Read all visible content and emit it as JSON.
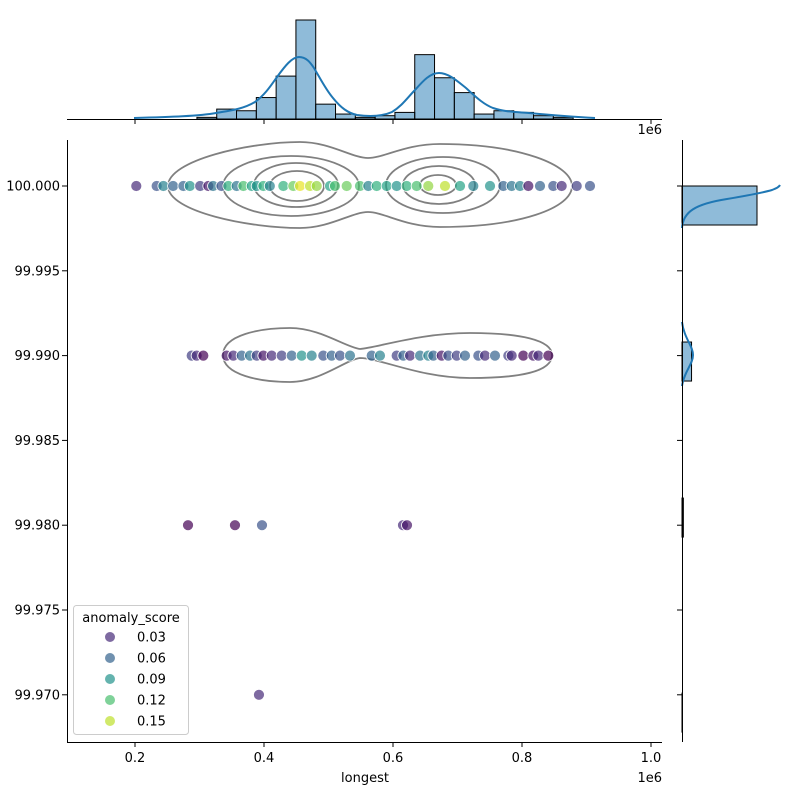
{
  "chart_data": {
    "type": "scatter",
    "subtype": "jointplot",
    "xlabel": "longest",
    "ylabel": "",
    "x_offset_label": "1e6",
    "top_offset_label": "1e6",
    "xlim": [
      94600,
      1017000
    ],
    "ylim": [
      99.9672,
      100.0027
    ],
    "x_ticks": [
      200000,
      400000,
      600000,
      800000,
      1000000
    ],
    "x_tick_labels": [
      "0.2",
      "0.4",
      "0.6",
      "0.8",
      "1.0"
    ],
    "y_ticks": [
      100.0,
      99.995,
      99.99,
      99.985,
      99.98,
      99.975,
      99.97
    ],
    "y_tick_labels": [
      "100.000",
      "99.995",
      "99.990",
      "99.985",
      "99.980",
      "99.975",
      "99.970"
    ],
    "grid": false,
    "hue": "anomaly_score",
    "hue_range": [
      0.0115,
      0.165
    ],
    "colormap": "viridis",
    "marker_alpha": 0.7,
    "legend": {
      "title": "anomaly_score",
      "placement": "lower-left",
      "entries": [
        "0.03",
        "0.06",
        "0.09",
        "0.12",
        "0.15"
      ],
      "values": [
        0.03,
        0.06,
        0.09,
        0.12,
        0.15
      ]
    },
    "points": [
      [
        202000,
        100.0,
        0.03
      ],
      [
        233600,
        100.0,
        0.05
      ],
      [
        244000,
        100.0,
        0.08
      ],
      [
        259000,
        100.0,
        0.06
      ],
      [
        275000,
        100.0,
        0.06
      ],
      [
        285000,
        100.0,
        0.09
      ],
      [
        301000,
        100.0,
        0.04
      ],
      [
        313700,
        100.0,
        0.02
      ],
      [
        321000,
        100.0,
        0.07
      ],
      [
        334000,
        100.0,
        0.05
      ],
      [
        344700,
        100.0,
        0.11
      ],
      [
        357600,
        100.0,
        0.07
      ],
      [
        368000,
        100.0,
        0.12
      ],
      [
        381000,
        100.0,
        0.1
      ],
      [
        388700,
        100.0,
        0.09
      ],
      [
        399000,
        100.0,
        0.11
      ],
      [
        409000,
        100.0,
        0.08
      ],
      [
        430000,
        100.0,
        0.11
      ],
      [
        445400,
        100.0,
        0.13
      ],
      [
        455800,
        100.0,
        0.16
      ],
      [
        471300,
        100.0,
        0.15
      ],
      [
        481700,
        100.0,
        0.14
      ],
      [
        502300,
        100.0,
        0.1
      ],
      [
        510000,
        100.0,
        0.12
      ],
      [
        528200,
        100.0,
        0.13
      ],
      [
        548800,
        100.0,
        0.12
      ],
      [
        561700,
        100.0,
        0.08
      ],
      [
        574700,
        100.0,
        0.11
      ],
      [
        590200,
        100.0,
        0.1
      ],
      [
        605700,
        100.0,
        0.09
      ],
      [
        621200,
        100.0,
        0.11
      ],
      [
        636700,
        100.0,
        0.12
      ],
      [
        654700,
        100.0,
        0.14
      ],
      [
        680600,
        100.0,
        0.15
      ],
      [
        703900,
        100.0,
        0.1
      ],
      [
        724500,
        100.0,
        0.08
      ],
      [
        750400,
        100.0,
        0.09
      ],
      [
        771000,
        100.0,
        0.06
      ],
      [
        784000,
        100.0,
        0.07
      ],
      [
        796900,
        100.0,
        0.08
      ],
      [
        809800,
        100.0,
        0.02
      ],
      [
        827900,
        100.0,
        0.06
      ],
      [
        848500,
        100.0,
        0.05
      ],
      [
        861500,
        100.0,
        0.03
      ],
      [
        884800,
        100.0,
        0.04
      ],
      [
        905400,
        100.0,
        0.05
      ],
      [
        287900,
        99.99,
        0.04
      ],
      [
        295600,
        99.99,
        0.03
      ],
      [
        305900,
        99.99,
        0.01
      ],
      [
        342100,
        99.99,
        0.02
      ],
      [
        352400,
        99.99,
        0.03
      ],
      [
        365400,
        99.99,
        0.06
      ],
      [
        378300,
        99.99,
        0.07
      ],
      [
        388700,
        99.99,
        0.04
      ],
      [
        399000,
        99.99,
        0.02
      ],
      [
        411900,
        99.99,
        0.03
      ],
      [
        427400,
        99.99,
        0.04
      ],
      [
        442900,
        99.99,
        0.06
      ],
      [
        458400,
        99.99,
        0.09
      ],
      [
        473900,
        99.99,
        0.08
      ],
      [
        491900,
        99.99,
        0.05
      ],
      [
        504900,
        99.99,
        0.06
      ],
      [
        517800,
        99.99,
        0.05
      ],
      [
        533300,
        99.99,
        0.07
      ],
      [
        567000,
        99.99,
        0.06
      ],
      [
        579800,
        99.99,
        0.08
      ],
      [
        605700,
        99.99,
        0.04
      ],
      [
        616000,
        99.99,
        0.06
      ],
      [
        626400,
        99.99,
        0.03
      ],
      [
        641900,
        99.99,
        0.07
      ],
      [
        654700,
        99.99,
        0.08
      ],
      [
        662500,
        99.99,
        0.06
      ],
      [
        675500,
        99.99,
        0.02
      ],
      [
        685700,
        99.99,
        0.05
      ],
      [
        698800,
        99.99,
        0.04
      ],
      [
        711600,
        99.99,
        0.06
      ],
      [
        732300,
        99.99,
        0.05
      ],
      [
        742600,
        99.99,
        0.03
      ],
      [
        758100,
        99.99,
        0.06
      ],
      [
        778800,
        99.99,
        0.04
      ],
      [
        784000,
        99.99,
        0.03
      ],
      [
        802000,
        99.99,
        0.01
      ],
      [
        817500,
        99.99,
        0.02
      ],
      [
        825300,
        99.99,
        0.03
      ],
      [
        840800,
        99.99,
        0.01
      ],
      [
        282200,
        99.98,
        0.01
      ],
      [
        355000,
        99.98,
        0.01
      ],
      [
        396900,
        99.98,
        0.05
      ],
      [
        615500,
        99.98,
        0.03
      ],
      [
        621700,
        99.98,
        0.02
      ],
      [
        392200,
        99.97,
        0.03
      ]
    ],
    "x_marginal": {
      "type": "histogram",
      "kde": true,
      "bin_start": 296000,
      "bin_width": 30700,
      "counts": [
        1,
        6,
        5,
        13,
        26,
        60,
        9,
        3,
        1,
        2,
        4,
        39,
        25,
        16,
        3,
        5,
        4,
        2,
        1,
        0
      ],
      "color": "#1f77b4"
    },
    "y_marginal": {
      "type": "histogram",
      "kde": true,
      "bins": [
        [
          99.9977,
          100.0,
          220
        ],
        [
          99.9885,
          99.9908,
          28
        ],
        [
          99.9793,
          99.9816,
          4
        ],
        [
          99.9678,
          99.9701,
          1
        ]
      ],
      "color": "#1f77b4"
    },
    "contour_color": "#808080"
  }
}
